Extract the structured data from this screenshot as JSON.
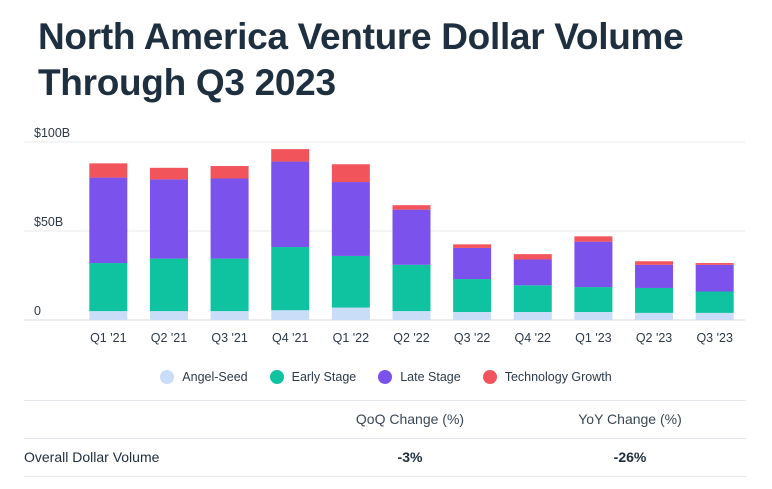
{
  "title_lines": [
    "North America Venture Dollar Volume",
    "Through Q3 2023"
  ],
  "chart_data": {
    "type": "bar",
    "stacked": true,
    "title": "North America Venture Dollar Volume Through Q3 2023",
    "categories": [
      "Q1 '21",
      "Q2 '21",
      "Q3 '21",
      "Q4 '21",
      "Q1 '22",
      "Q2 '22",
      "Q3 '22",
      "Q4 '22",
      "Q1 '23",
      "Q2 '23",
      "Q3 '23"
    ],
    "series": [
      {
        "name": "Angel-Seed",
        "color": "#c9dcf8",
        "values": [
          5,
          5,
          5,
          5.5,
          7,
          5,
          4.5,
          4.5,
          4.5,
          4,
          4
        ]
      },
      {
        "name": "Early Stage",
        "color": "#0fc2a0",
        "values": [
          27,
          29.5,
          29.5,
          35.5,
          29,
          26,
          18.5,
          15,
          14,
          14,
          12
        ]
      },
      {
        "name": "Late Stage",
        "color": "#7b52ec",
        "values": [
          48,
          44.5,
          45,
          48,
          41.5,
          31,
          17.5,
          14.5,
          25.5,
          13,
          15
        ]
      },
      {
        "name": "Technology Growth",
        "color": "#f2545b",
        "values": [
          8,
          6.5,
          7,
          7,
          10,
          2.5,
          2,
          3,
          3,
          2,
          1
        ]
      }
    ],
    "y_ticks": [
      {
        "value": 0,
        "label": "0"
      },
      {
        "value": 50,
        "label": "$50B"
      },
      {
        "value": 100,
        "label": "$100B"
      }
    ],
    "ylim": [
      0,
      100
    ],
    "xlabel": "",
    "ylabel": "",
    "grid": true,
    "legend_position": "bottom"
  },
  "table": {
    "headers": {
      "label": "",
      "qoq": "QoQ Change (%)",
      "yoy": "YoY Change (%)"
    },
    "rows": [
      {
        "label": "Overall Dollar Volume",
        "qoq": "-3%",
        "yoy": "-26%"
      }
    ]
  }
}
